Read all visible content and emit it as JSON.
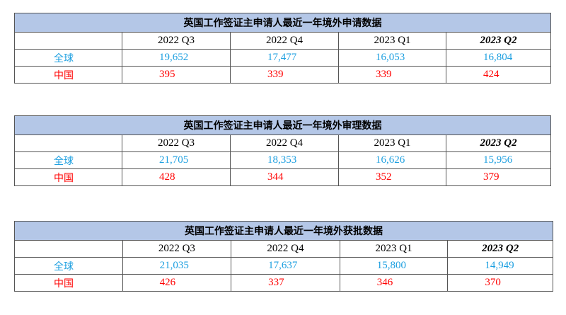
{
  "tables": [
    {
      "title": "英国工作签证主申请人最近一年境外申请数据",
      "header": [
        "2022 Q3",
        "2022 Q4",
        "2023 Q1",
        "2023 Q2"
      ],
      "rows": [
        {
          "label": "全球",
          "cells": [
            "19,652",
            "17,477",
            "16,053",
            "16,804"
          ]
        },
        {
          "label": "中国",
          "cells": [
            "395",
            "339",
            "339",
            "424"
          ]
        }
      ]
    },
    {
      "title": "英国工作签证主申请人最近一年境外审理数据",
      "header": [
        "2022 Q3",
        "2022 Q4",
        "2023 Q1",
        "2023 Q2"
      ],
      "rows": [
        {
          "label": "全球",
          "cells": [
            "21,705",
            "18,353",
            "16,626",
            "15,956"
          ]
        },
        {
          "label": "中国",
          "cells": [
            "428",
            "344",
            "352",
            "379"
          ]
        }
      ]
    },
    {
      "title": "英国工作签证主申请人最近一年境外获批数据",
      "header": [
        "2022 Q3",
        "2022 Q4",
        "2023 Q1",
        "2023 Q2"
      ],
      "rows": [
        {
          "label": "全球",
          "cells": [
            "21,035",
            "17,637",
            "15,800",
            "14,949"
          ]
        },
        {
          "label": "中国",
          "cells": [
            "426",
            "337",
            "346",
            "370"
          ]
        }
      ]
    }
  ]
}
